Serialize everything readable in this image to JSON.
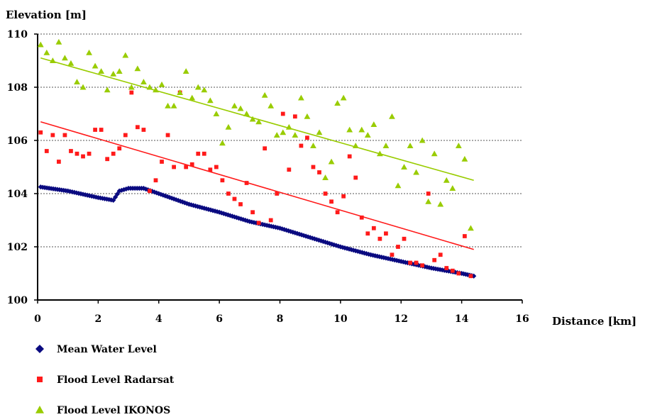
{
  "chart_data": {
    "type": "scatter",
    "title": "",
    "ylabel": "Elevation [m]",
    "xlabel": "Distance [km]",
    "xlim": [
      0,
      16
    ],
    "ylim": [
      100,
      110
    ],
    "x_ticks": [
      0,
      2,
      4,
      6,
      8,
      10,
      12,
      14,
      16
    ],
    "y_ticks": [
      100,
      102,
      104,
      106,
      108,
      110
    ],
    "grid": "horizontal dotted",
    "legend_position": "bottom-left",
    "colors": {
      "mean": "#0a0a80",
      "radarsat": "#ff1a1a",
      "ikonos": "#99cc00"
    },
    "series": [
      {
        "name": "Mean Water Level",
        "marker": "diamond",
        "x": [
          0.1,
          1.0,
          2.0,
          2.5,
          2.7,
          3.0,
          3.5,
          4.0,
          5.0,
          6.0,
          7.0,
          8.0,
          9.0,
          10.0,
          11.0,
          12.0,
          13.0,
          14.0,
          14.4
        ],
        "y": [
          104.25,
          104.1,
          103.85,
          103.75,
          104.1,
          104.2,
          104.2,
          104.0,
          103.6,
          103.3,
          102.95,
          102.7,
          102.35,
          102.0,
          101.7,
          101.45,
          101.2,
          101.0,
          100.9
        ]
      },
      {
        "name": "Flood Level Radarsat",
        "marker": "square",
        "x": [
          0.1,
          0.3,
          0.5,
          0.7,
          0.9,
          1.1,
          1.3,
          1.5,
          1.7,
          1.9,
          2.1,
          2.3,
          2.5,
          2.7,
          2.9,
          3.1,
          3.3,
          3.5,
          3.7,
          3.9,
          4.1,
          4.3,
          4.5,
          4.7,
          4.9,
          5.1,
          5.3,
          5.5,
          5.7,
          5.9,
          6.1,
          6.3,
          6.5,
          6.7,
          6.9,
          7.1,
          7.3,
          7.5,
          7.7,
          7.9,
          8.1,
          8.3,
          8.5,
          8.7,
          8.9,
          9.1,
          9.3,
          9.5,
          9.7,
          9.9,
          10.1,
          10.3,
          10.5,
          10.7,
          10.9,
          11.1,
          11.3,
          11.5,
          11.7,
          11.9,
          12.1,
          12.3,
          12.5,
          12.7,
          12.9,
          13.1,
          13.3,
          13.5,
          13.7,
          13.9,
          14.1,
          14.3
        ],
        "y": [
          106.3,
          105.6,
          106.2,
          105.2,
          106.2,
          105.6,
          105.5,
          105.4,
          105.5,
          106.4,
          106.4,
          105.3,
          105.5,
          105.7,
          106.2,
          107.8,
          106.5,
          106.4,
          104.1,
          104.5,
          105.2,
          106.2,
          105.0,
          107.8,
          105.0,
          105.1,
          105.5,
          105.5,
          104.9,
          105.0,
          104.5,
          104.0,
          103.8,
          103.6,
          104.4,
          103.3,
          102.9,
          105.7,
          103.0,
          104.0,
          107.0,
          104.9,
          106.9,
          105.8,
          106.1,
          105.0,
          104.8,
          104.0,
          103.7,
          103.3,
          103.9,
          105.4,
          104.6,
          103.1,
          102.5,
          102.7,
          102.3,
          102.5,
          101.7,
          102.0,
          102.3,
          101.4,
          101.4,
          101.3,
          104.0,
          101.5,
          101.7,
          101.2,
          101.1,
          101.0,
          102.4,
          100.9
        ]
      },
      {
        "name": "Flood Level IKONOS",
        "marker": "triangle",
        "x": [
          0.1,
          0.3,
          0.5,
          0.7,
          0.9,
          1.1,
          1.3,
          1.5,
          1.7,
          1.9,
          2.1,
          2.3,
          2.5,
          2.7,
          2.9,
          3.1,
          3.3,
          3.5,
          3.7,
          3.9,
          4.1,
          4.3,
          4.5,
          4.7,
          4.9,
          5.1,
          5.3,
          5.5,
          5.7,
          5.9,
          6.1,
          6.3,
          6.5,
          6.7,
          6.9,
          7.1,
          7.3,
          7.5,
          7.7,
          7.9,
          8.1,
          8.3,
          8.5,
          8.7,
          8.9,
          9.1,
          9.3,
          9.5,
          9.7,
          9.9,
          10.1,
          10.3,
          10.5,
          10.7,
          10.9,
          11.1,
          11.3,
          11.5,
          11.7,
          11.9,
          12.1,
          12.3,
          12.5,
          12.7,
          12.9,
          13.1,
          13.3,
          13.5,
          13.7,
          13.9,
          14.1,
          14.3
        ],
        "y": [
          109.6,
          109.3,
          109.0,
          109.7,
          109.1,
          108.9,
          108.2,
          108.0,
          109.3,
          108.8,
          108.6,
          107.9,
          108.5,
          108.6,
          109.2,
          108.0,
          108.7,
          108.2,
          108.0,
          107.9,
          108.1,
          107.3,
          107.3,
          107.8,
          108.6,
          107.6,
          108.0,
          107.9,
          107.5,
          107.0,
          105.9,
          106.5,
          107.3,
          107.2,
          107.0,
          106.8,
          106.7,
          107.7,
          107.3,
          106.2,
          106.3,
          106.5,
          106.2,
          107.6,
          106.9,
          105.8,
          106.3,
          104.6,
          105.2,
          107.4,
          107.6,
          106.4,
          105.8,
          106.4,
          106.2,
          106.6,
          105.5,
          105.8,
          106.9,
          104.3,
          105.0,
          105.8,
          104.8,
          106.0,
          103.7,
          105.5,
          103.6,
          104.5,
          104.2,
          105.8,
          105.3,
          102.7
        ]
      }
    ],
    "trendlines": [
      {
        "series": "Flood Level Radarsat",
        "x": [
          0.1,
          14.4
        ],
        "y": [
          106.7,
          101.9
        ]
      },
      {
        "series": "Flood Level IKONOS",
        "x": [
          0.1,
          14.4
        ],
        "y": [
          109.1,
          104.5
        ]
      }
    ]
  }
}
